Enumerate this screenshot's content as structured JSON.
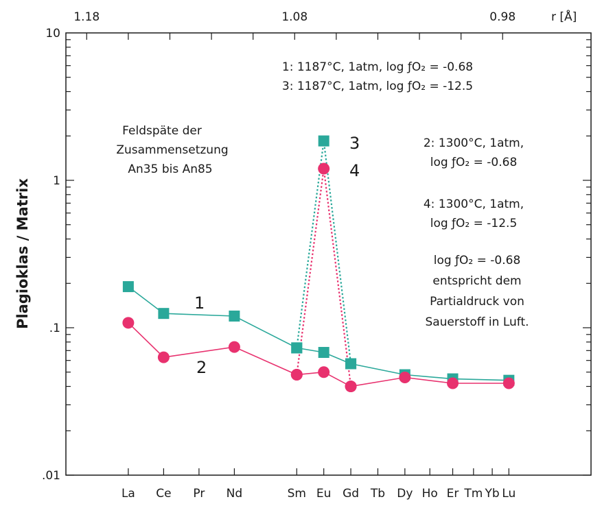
{
  "chart_data": {
    "type": "line",
    "ylabel": "Plagioklas / Matrix",
    "yscale": "log",
    "ylim": [
      0.01,
      10
    ],
    "yticks": [
      {
        "value": 0.01,
        "label": ".01"
      },
      {
        "value": 0.1,
        "label": ".1"
      },
      {
        "value": 1,
        "label": "1"
      },
      {
        "value": 10,
        "label": "10"
      }
    ],
    "top_axis": {
      "label": "r [Å]",
      "ticks": [
        {
          "value": 1.18,
          "label": "1.18"
        },
        {
          "value": 1.08,
          "label": "1.08"
        },
        {
          "value": 0.98,
          "label": "0.98"
        }
      ]
    },
    "categories": [
      "La",
      "Ce",
      "Pr",
      "Nd",
      "Sm",
      "Eu",
      "Gd",
      "Tb",
      "Dy",
      "Ho",
      "Er",
      "Tm",
      "Yb",
      "Lu"
    ],
    "ionic_radius": {
      "La": 1.16,
      "Ce": 1.143,
      "Pr": 1.126,
      "Nd": 1.109,
      "Sm": 1.079,
      "Eu": 1.066,
      "Gd": 1.053,
      "Tb": 1.04,
      "Dy": 1.027,
      "Ho": 1.015,
      "Er": 1.004,
      "Tm": 0.994,
      "Yb": 0.985,
      "Lu": 0.977
    },
    "series": [
      {
        "name": "1",
        "color": "#2aa89a",
        "marker": "square",
        "line": "solid",
        "points": [
          [
            "La",
            0.19
          ],
          [
            "Ce",
            0.125
          ],
          [
            "Nd",
            0.12
          ],
          [
            "Sm",
            0.073
          ],
          [
            "Eu",
            0.068
          ],
          [
            "Gd",
            0.057
          ],
          [
            "Dy",
            0.048
          ],
          [
            "Er",
            0.045
          ],
          [
            "Lu",
            0.044
          ]
        ]
      },
      {
        "name": "2",
        "color": "#e8316e",
        "marker": "circle",
        "line": "solid",
        "points": [
          [
            "La",
            0.108
          ],
          [
            "Ce",
            0.063
          ],
          [
            "Nd",
            0.074
          ],
          [
            "Sm",
            0.048
          ],
          [
            "Eu",
            0.05
          ],
          [
            "Gd",
            0.04
          ],
          [
            "Dy",
            0.046
          ],
          [
            "Er",
            0.042
          ],
          [
            "Lu",
            0.042
          ]
        ]
      },
      {
        "name": "3",
        "color": "#2aa89a",
        "marker": "square",
        "line": "dotted",
        "points": [
          [
            "Sm",
            0.073
          ],
          [
            "Eu",
            1.85
          ],
          [
            "Gd",
            0.057
          ]
        ]
      },
      {
        "name": "4",
        "color": "#e8316e",
        "marker": "circle",
        "line": "dotted",
        "points": [
          [
            "Sm",
            0.048
          ],
          [
            "Eu",
            1.2
          ],
          [
            "Gd",
            0.04
          ]
        ]
      }
    ],
    "annotations": {
      "legend_13": [
        "1: 1187°C, 1atm, log ƒO₂ = -0.68",
        "3: 1187°C, 1atm, log ƒO₂ = -12.5"
      ],
      "composition": [
        "Feldspäte der",
        "Zusammensetzung",
        "An35 bis An85"
      ],
      "legend_2": [
        "2: 1300°C, 1atm,",
        "log ƒO₂ = -0.68"
      ],
      "legend_4": [
        "4: 1300°C, 1atm,",
        "log ƒO₂ = -12.5"
      ],
      "note": [
        "log ƒO₂ = -0.68",
        "entspricht dem",
        "Partialdruck von",
        "Sauerstoff in Luft."
      ]
    }
  }
}
